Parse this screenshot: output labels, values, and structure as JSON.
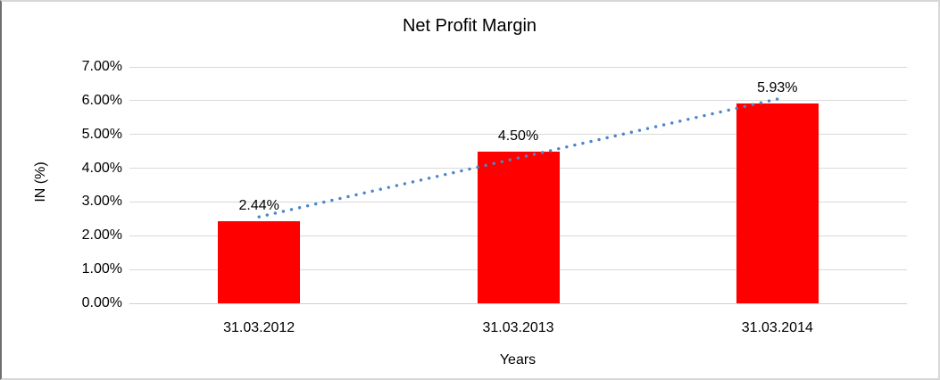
{
  "chart_data": {
    "type": "bar",
    "title": "Net Profit Margin",
    "xlabel": "Years",
    "ylabel": "IN (%)",
    "categories": [
      "31.03.2012",
      "31.03.2013",
      "31.03.2014"
    ],
    "values": [
      2.44,
      4.5,
      5.93
    ],
    "data_labels": [
      "2.44%",
      "4.50%",
      "5.93%"
    ],
    "ylim": [
      0,
      7
    ],
    "ytick_step": 1,
    "ytick_labels": [
      "0.00%",
      "1.00%",
      "2.00%",
      "3.00%",
      "4.00%",
      "5.00%",
      "6.00%",
      "7.00%"
    ],
    "grid": true,
    "legend": "none",
    "colors": {
      "bar": "#ff0000",
      "gridline": "#d9d9d9",
      "baseline": "#cfcfcf",
      "trendline": "#4a86c8",
      "text": "#000000"
    },
    "trendline": {
      "type": "linear",
      "style": "dotted",
      "from_value": 2.44,
      "to_value": 5.93
    }
  }
}
